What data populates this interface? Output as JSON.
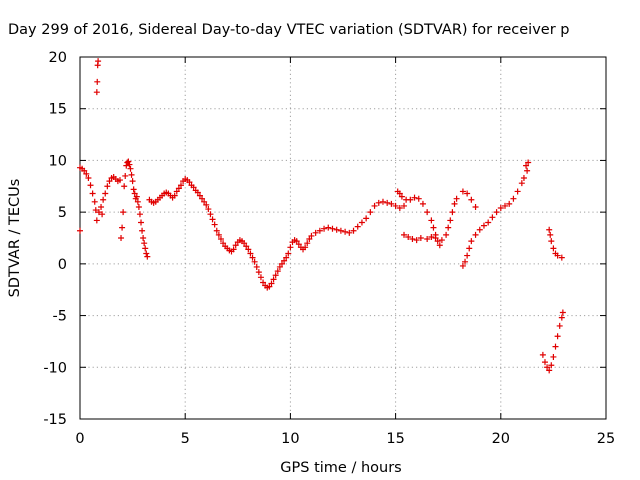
{
  "chart_data": {
    "type": "scatter",
    "title": "Day 299 of 2016, Sidereal Day-to-day VTEC variation (SDTVAR) for receiver p",
    "xlabel": "GPS time / hours",
    "ylabel": "SDTVAR / TECUs",
    "xlim": [
      0,
      25
    ],
    "ylim": [
      -15,
      20
    ],
    "xticks": [
      "0",
      "5",
      "10",
      "15",
      "20",
      "25"
    ],
    "yticks": [
      "-15",
      "-10",
      "-5",
      "0",
      "5",
      "10",
      "15",
      "20"
    ],
    "grid": true,
    "marker": "plus",
    "color": "#e00000",
    "series": [
      {
        "points": [
          [
            0.0,
            3.2
          ],
          [
            0.0,
            9.3
          ],
          [
            0.1,
            9.2
          ],
          [
            0.2,
            9.0
          ],
          [
            0.3,
            8.7
          ],
          [
            0.4,
            8.3
          ],
          [
            0.5,
            7.6
          ],
          [
            0.6,
            6.8
          ],
          [
            0.7,
            6.0
          ],
          [
            0.75,
            5.2
          ],
          [
            0.8,
            4.2
          ],
          [
            0.8,
            16.6
          ],
          [
            0.82,
            17.6
          ],
          [
            0.84,
            19.2
          ],
          [
            0.86,
            19.6
          ],
          [
            0.9,
            5.0
          ],
          [
            1.0,
            5.5
          ],
          [
            1.05,
            4.8
          ],
          [
            1.1,
            6.2
          ],
          [
            1.2,
            6.8
          ],
          [
            1.3,
            7.5
          ],
          [
            1.4,
            8.0
          ],
          [
            1.5,
            8.3
          ],
          [
            1.6,
            8.4
          ],
          [
            1.7,
            8.2
          ],
          [
            1.8,
            8.0
          ],
          [
            1.9,
            8.1
          ],
          [
            1.95,
            2.5
          ],
          [
            2.0,
            3.5
          ],
          [
            2.05,
            5.0
          ],
          [
            2.1,
            7.5
          ],
          [
            2.15,
            8.5
          ],
          [
            2.2,
            9.5
          ],
          [
            2.25,
            9.8
          ],
          [
            2.3,
            9.9
          ],
          [
            2.35,
            9.6
          ],
          [
            2.4,
            9.2
          ],
          [
            2.45,
            8.6
          ],
          [
            2.5,
            8.0
          ],
          [
            2.55,
            7.2
          ],
          [
            2.6,
            6.8
          ],
          [
            2.65,
            6.3
          ],
          [
            2.7,
            6.5
          ],
          [
            2.75,
            6.0
          ],
          [
            2.8,
            5.5
          ],
          [
            2.85,
            4.8
          ],
          [
            2.9,
            4.0
          ],
          [
            2.95,
            3.2
          ],
          [
            3.0,
            2.5
          ],
          [
            3.05,
            2.0
          ],
          [
            3.1,
            1.5
          ],
          [
            3.15,
            1.0
          ],
          [
            3.2,
            0.7
          ],
          [
            3.3,
            6.2
          ],
          [
            3.4,
            6.0
          ],
          [
            3.5,
            5.9
          ],
          [
            3.6,
            6.0
          ],
          [
            3.7,
            6.2
          ],
          [
            3.8,
            6.4
          ],
          [
            3.9,
            6.6
          ],
          [
            4.0,
            6.8
          ],
          [
            4.1,
            6.9
          ],
          [
            4.2,
            6.8
          ],
          [
            4.3,
            6.6
          ],
          [
            4.4,
            6.4
          ],
          [
            4.5,
            6.6
          ],
          [
            4.6,
            7.0
          ],
          [
            4.7,
            7.3
          ],
          [
            4.8,
            7.6
          ],
          [
            4.9,
            8.0
          ],
          [
            5.0,
            8.2
          ],
          [
            5.1,
            8.1
          ],
          [
            5.2,
            7.9
          ],
          [
            5.3,
            7.6
          ],
          [
            5.4,
            7.4
          ],
          [
            5.5,
            7.1
          ],
          [
            5.6,
            6.9
          ],
          [
            5.7,
            6.6
          ],
          [
            5.8,
            6.3
          ],
          [
            5.9,
            6.0
          ],
          [
            6.0,
            5.7
          ],
          [
            6.1,
            5.3
          ],
          [
            6.2,
            4.8
          ],
          [
            6.3,
            4.3
          ],
          [
            6.4,
            3.8
          ],
          [
            6.5,
            3.2
          ],
          [
            6.6,
            2.8
          ],
          [
            6.7,
            2.4
          ],
          [
            6.8,
            2.0
          ],
          [
            6.9,
            1.7
          ],
          [
            7.0,
            1.5
          ],
          [
            7.1,
            1.3
          ],
          [
            7.2,
            1.2
          ],
          [
            7.3,
            1.4
          ],
          [
            7.4,
            1.8
          ],
          [
            7.5,
            2.1
          ],
          [
            7.6,
            2.3
          ],
          [
            7.7,
            2.2
          ],
          [
            7.8,
            2.0
          ],
          [
            7.9,
            1.7
          ],
          [
            8.0,
            1.4
          ],
          [
            8.1,
            1.0
          ],
          [
            8.2,
            0.6
          ],
          [
            8.3,
            0.2
          ],
          [
            8.4,
            -0.3
          ],
          [
            8.5,
            -0.8
          ],
          [
            8.6,
            -1.3
          ],
          [
            8.7,
            -1.8
          ],
          [
            8.8,
            -2.1
          ],
          [
            8.9,
            -2.3
          ],
          [
            9.0,
            -2.2
          ],
          [
            9.1,
            -1.9
          ],
          [
            9.2,
            -1.5
          ],
          [
            9.3,
            -1.1
          ],
          [
            9.4,
            -0.7
          ],
          [
            9.5,
            -0.3
          ],
          [
            9.6,
            0.0
          ],
          [
            9.7,
            0.3
          ],
          [
            9.8,
            0.6
          ],
          [
            9.9,
            1.0
          ],
          [
            10.0,
            1.6
          ],
          [
            10.1,
            2.1
          ],
          [
            10.2,
            2.3
          ],
          [
            10.3,
            2.2
          ],
          [
            10.4,
            1.9
          ],
          [
            10.5,
            1.6
          ],
          [
            10.6,
            1.4
          ],
          [
            10.7,
            1.6
          ],
          [
            10.8,
            2.0
          ],
          [
            10.9,
            2.4
          ],
          [
            11.0,
            2.7
          ],
          [
            11.2,
            3.0
          ],
          [
            11.4,
            3.2
          ],
          [
            11.6,
            3.4
          ],
          [
            11.8,
            3.5
          ],
          [
            12.0,
            3.4
          ],
          [
            12.2,
            3.3
          ],
          [
            12.4,
            3.2
          ],
          [
            12.6,
            3.1
          ],
          [
            12.8,
            3.0
          ],
          [
            13.0,
            3.2
          ],
          [
            13.2,
            3.6
          ],
          [
            13.4,
            4.0
          ],
          [
            13.6,
            4.4
          ],
          [
            13.8,
            5.0
          ],
          [
            14.0,
            5.6
          ],
          [
            14.2,
            5.9
          ],
          [
            14.4,
            6.0
          ],
          [
            14.6,
            5.9
          ],
          [
            14.8,
            5.8
          ],
          [
            15.0,
            5.6
          ],
          [
            15.2,
            5.4
          ],
          [
            15.4,
            5.6
          ],
          [
            15.1,
            7.0
          ],
          [
            15.2,
            6.8
          ],
          [
            15.3,
            6.5
          ],
          [
            15.5,
            6.2
          ],
          [
            15.4,
            2.8
          ],
          [
            15.6,
            2.6
          ],
          [
            15.8,
            2.4
          ],
          [
            16.0,
            2.3
          ],
          [
            16.2,
            2.5
          ],
          [
            15.7,
            6.2
          ],
          [
            15.9,
            6.4
          ],
          [
            16.1,
            6.3
          ],
          [
            16.3,
            5.8
          ],
          [
            16.5,
            5.0
          ],
          [
            16.7,
            4.2
          ],
          [
            16.8,
            3.5
          ],
          [
            16.9,
            2.8
          ],
          [
            17.0,
            2.2
          ],
          [
            17.1,
            1.8
          ],
          [
            16.5,
            2.4
          ],
          [
            16.7,
            2.6
          ],
          [
            16.9,
            2.5
          ],
          [
            17.2,
            2.3
          ],
          [
            17.4,
            2.8
          ],
          [
            17.5,
            3.5
          ],
          [
            17.6,
            4.2
          ],
          [
            17.7,
            5.0
          ],
          [
            17.8,
            5.8
          ],
          [
            17.9,
            6.3
          ],
          [
            18.2,
            -0.2
          ],
          [
            18.3,
            0.2
          ],
          [
            18.4,
            0.8
          ],
          [
            18.5,
            1.5
          ],
          [
            18.6,
            2.2
          ],
          [
            18.8,
            2.8
          ],
          [
            19.0,
            3.3
          ],
          [
            19.2,
            3.7
          ],
          [
            19.4,
            4.0
          ],
          [
            19.6,
            4.5
          ],
          [
            19.8,
            5.0
          ],
          [
            20.0,
            5.4
          ],
          [
            20.2,
            5.6
          ],
          [
            20.4,
            5.8
          ],
          [
            20.6,
            6.3
          ],
          [
            20.8,
            7.0
          ],
          [
            21.0,
            7.8
          ],
          [
            21.1,
            8.3
          ],
          [
            21.2,
            9.5
          ],
          [
            21.3,
            9.8
          ],
          [
            21.25,
            9.0
          ],
          [
            18.2,
            7.0
          ],
          [
            18.4,
            6.8
          ],
          [
            18.6,
            6.2
          ],
          [
            18.8,
            5.5
          ],
          [
            22.0,
            -8.8
          ],
          [
            22.1,
            -9.5
          ],
          [
            22.2,
            -10.0
          ],
          [
            22.3,
            -10.3
          ],
          [
            22.4,
            -9.8
          ],
          [
            22.5,
            -9.0
          ],
          [
            22.6,
            -8.0
          ],
          [
            22.7,
            -7.0
          ],
          [
            22.8,
            -6.0
          ],
          [
            22.9,
            -5.2
          ],
          [
            22.95,
            -4.7
          ],
          [
            22.3,
            3.3
          ],
          [
            22.35,
            2.8
          ],
          [
            22.4,
            2.2
          ],
          [
            22.5,
            1.5
          ],
          [
            22.6,
            1.0
          ],
          [
            22.7,
            0.8
          ],
          [
            22.9,
            0.6
          ]
        ]
      }
    ]
  }
}
